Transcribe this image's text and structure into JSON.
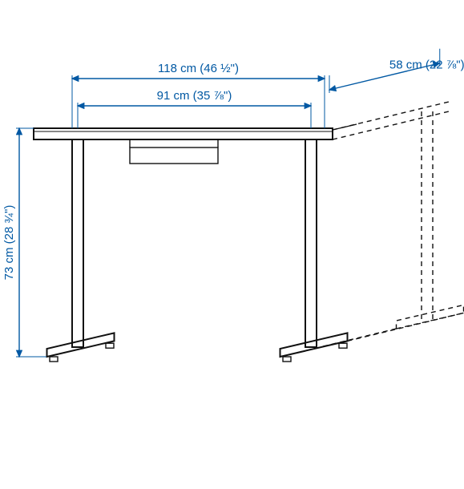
{
  "diagram": {
    "type": "technical-dimension-drawing",
    "background_color": "#ffffff",
    "dimension_color": "#0058a3",
    "product_line_color": "#111111",
    "product_fill_color": "#ffffff",
    "dash_pattern": "6,5",
    "line_width_thin": 1.4,
    "line_width_med": 2,
    "arrow_size": 7,
    "font_size": 15,
    "dimensions": {
      "width_top": {
        "label": "118 cm (46 ½\")"
      },
      "width_inner": {
        "label": "91 cm (35 ⅞\")"
      },
      "depth": {
        "label": "58 cm (22 ⅞\")"
      },
      "height": {
        "label": "73 cm (28 ¾\")"
      }
    }
  }
}
